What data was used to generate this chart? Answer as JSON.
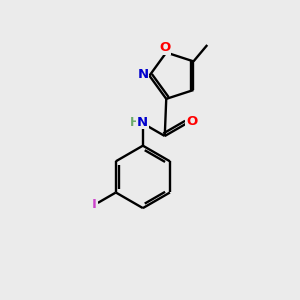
{
  "background_color": "#ebebeb",
  "bond_color": "#000000",
  "atom_colors": {
    "O": "#ff0000",
    "N": "#0000cd",
    "I": "#cc44cc",
    "H": "#6aaa6a",
    "C": "#000000"
  },
  "figsize": [
    3.0,
    3.0
  ],
  "dpi": 100,
  "lw": 1.7
}
